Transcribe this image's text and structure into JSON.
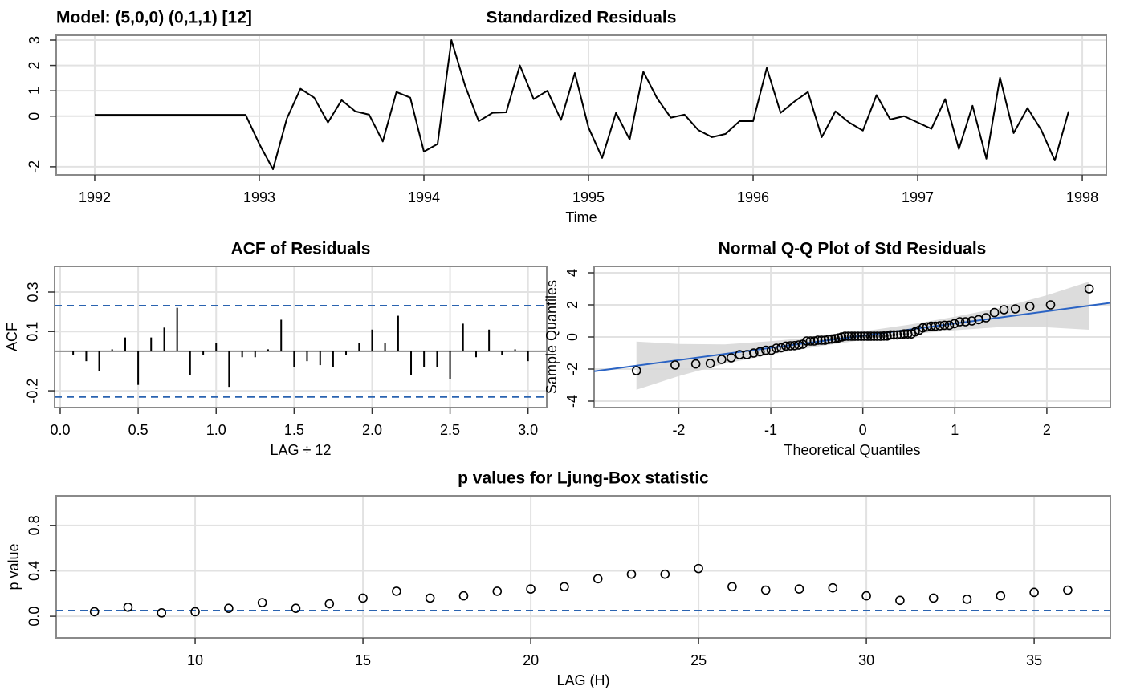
{
  "chart_data": [
    {
      "type": "line",
      "title": "Standardized Residuals",
      "annotation": "Model: (5,0,0) (0,1,1) [12]",
      "xlabel": "Time",
      "x": [
        1992,
        1992.083,
        1992.167,
        1992.25,
        1992.333,
        1992.417,
        1992.5,
        1992.583,
        1992.667,
        1992.75,
        1992.833,
        1992.917,
        1993,
        1993.083,
        1993.167,
        1993.25,
        1993.333,
        1993.417,
        1993.5,
        1993.583,
        1993.667,
        1993.75,
        1993.833,
        1993.917,
        1994,
        1994.083,
        1994.167,
        1994.25,
        1994.333,
        1994.417,
        1994.5,
        1994.583,
        1994.667,
        1994.75,
        1994.833,
        1994.917,
        1995,
        1995.083,
        1995.167,
        1995.25,
        1995.333,
        1995.417,
        1995.5,
        1995.583,
        1995.667,
        1995.75,
        1995.833,
        1995.917,
        1996,
        1996.083,
        1996.167,
        1996.25,
        1996.333,
        1996.417,
        1996.5,
        1996.583,
        1996.667,
        1996.75,
        1996.833,
        1996.917,
        1997,
        1997.083,
        1997.167,
        1997.25,
        1997.333,
        1997.417,
        1997.5,
        1997.583,
        1997.667,
        1997.75,
        1997.833,
        1997.917
      ],
      "values": [
        0.05,
        0.05,
        0.05,
        0.05,
        0.05,
        0.05,
        0.05,
        0.05,
        0.05,
        0.05,
        0.05,
        0.05,
        -1.1,
        -2.1,
        -0.1,
        1.08,
        0.73,
        -0.25,
        0.63,
        0.19,
        0.06,
        -1.0,
        0.95,
        0.73,
        -1.4,
        -1.1,
        3.0,
        1.2,
        -0.2,
        0.13,
        0.15,
        2.0,
        0.67,
        1.0,
        -0.15,
        1.7,
        -0.45,
        -1.65,
        0.13,
        -0.92,
        1.75,
        0.7,
        -0.06,
        0.06,
        -0.55,
        -0.83,
        -0.7,
        -0.2,
        -0.2,
        1.9,
        0.13,
        0.57,
        0.95,
        -0.83,
        0.19,
        -0.25,
        -0.57,
        0.83,
        -0.13,
        0,
        -0.25,
        -0.5,
        0.67,
        -1.3,
        0.41,
        -1.68,
        1.52,
        -0.67,
        0.32,
        -0.54,
        -1.75,
        0.19
      ],
      "color": "#000000",
      "xlim": [
        1991.766,
        1998.146
      ],
      "ylim": [
        -2.32,
        3.19
      ],
      "xticks": [
        1992,
        1993,
        1994,
        1995,
        1996,
        1997,
        1998
      ],
      "yticks": [
        -2,
        0,
        1,
        2,
        3
      ],
      "grid": true
    },
    {
      "type": "bar",
      "title": "ACF of Residuals",
      "xlabel": "LAG ÷ 12",
      "ylabel": "ACF",
      "x": [
        0.083,
        0.167,
        0.25,
        0.333,
        0.417,
        0.5,
        0.583,
        0.667,
        0.75,
        0.833,
        0.917,
        1,
        1.083,
        1.167,
        1.25,
        1.333,
        1.417,
        1.5,
        1.583,
        1.667,
        1.75,
        1.833,
        1.917,
        2,
        2.083,
        2.167,
        2.25,
        2.333,
        2.417,
        2.5,
        2.583,
        2.667,
        2.75,
        2.833,
        2.917,
        3
      ],
      "values": [
        -0.02,
        -0.05,
        -0.1,
        0.01,
        0.07,
        -0.17,
        0.07,
        0.12,
        0.22,
        -0.12,
        -0.02,
        0.04,
        -0.18,
        -0.03,
        -0.03,
        0.01,
        0.16,
        -0.08,
        -0.05,
        -0.07,
        -0.08,
        -0.02,
        0.04,
        0.11,
        0.04,
        0.18,
        -0.12,
        -0.08,
        -0.08,
        -0.14,
        0.14,
        -0.03,
        0.11,
        -0.02,
        0.01,
        -0.05
      ],
      "color": "#000000",
      "hlines": [
        0.231,
        -0.231
      ],
      "hline_color": "#2a63b0",
      "xlim": [
        -0.036,
        3.12
      ],
      "ylim": [
        -0.285,
        0.43
      ],
      "xticks": [
        {
          "value": 0,
          "label": "0.0"
        },
        0.5,
        {
          "value": 1,
          "label": "1.0"
        },
        1.5,
        {
          "value": 2,
          "label": "2.0"
        },
        2.5,
        {
          "value": 3,
          "label": "3.0"
        }
      ],
      "yticks": [
        -0.2,
        0.1,
        0.3
      ],
      "grid": true
    },
    {
      "type": "scatter",
      "title": "Normal Q-Q Plot of Std Residuals",
      "xlabel": "Theoretical Quantiles",
      "ylabel": "Sample Quantiles",
      "x": [
        -2.46,
        -2.04,
        -1.815,
        -1.658,
        -1.534,
        -1.43,
        -1.339,
        -1.259,
        -1.185,
        -1.117,
        -1.054,
        -0.995,
        -0.94,
        -0.887,
        -0.837,
        -0.788,
        -0.742,
        -0.697,
        -0.653,
        -0.61,
        -0.569,
        -0.528,
        -0.489,
        -0.45,
        -0.412,
        -0.374,
        -0.337,
        -0.301,
        -0.264,
        -0.229,
        -0.193,
        -0.157,
        -0.122,
        -0.087,
        -0.052,
        -0.017,
        0.017,
        0.052,
        0.087,
        0.122,
        0.157,
        0.193,
        0.229,
        0.264,
        0.301,
        0.337,
        0.374,
        0.412,
        0.45,
        0.489,
        0.528,
        0.569,
        0.61,
        0.653,
        0.697,
        0.742,
        0.788,
        0.837,
        0.887,
        0.94,
        0.995,
        1.054,
        1.117,
        1.185,
        1.259,
        1.339,
        1.43,
        1.534,
        1.658,
        1.815,
        2.04,
        2.46
      ],
      "values": [
        -2.1,
        -1.75,
        -1.68,
        -1.65,
        -1.4,
        -1.3,
        -1.1,
        -1.1,
        -1.0,
        -0.92,
        -0.83,
        -0.83,
        -0.7,
        -0.67,
        -0.57,
        -0.55,
        -0.54,
        -0.5,
        -0.45,
        -0.25,
        -0.25,
        -0.25,
        -0.2,
        -0.2,
        -0.2,
        -0.15,
        -0.13,
        -0.1,
        -0.06,
        0,
        0.05,
        0.05,
        0.05,
        0.05,
        0.05,
        0.05,
        0.05,
        0.05,
        0.05,
        0.05,
        0.05,
        0.05,
        0.06,
        0.06,
        0.13,
        0.13,
        0.13,
        0.15,
        0.19,
        0.19,
        0.19,
        0.32,
        0.41,
        0.57,
        0.63,
        0.67,
        0.67,
        0.7,
        0.73,
        0.73,
        0.83,
        0.95,
        0.95,
        1.0,
        1.08,
        1.2,
        1.52,
        1.7,
        1.75,
        1.9,
        2.0,
        3.0
      ],
      "color": "#000000",
      "fit": {
        "slope": 0.76,
        "intercept": 0.08,
        "color": "#2a63c4"
      },
      "band": {
        "x": [
          -2.46,
          -2,
          -1.5,
          -1,
          -0.5,
          0,
          0.5,
          1,
          1.5,
          2,
          2.46
        ],
        "lower": [
          -3.29,
          -2.44,
          -1.66,
          -1.1,
          -0.6,
          -0.19,
          0.16,
          0.42,
          0.62,
          0.6,
          0.45
        ],
        "upper": [
          -0.29,
          -0.44,
          -0.46,
          -0.26,
          0,
          0.35,
          0.76,
          1.26,
          1.82,
          2.6,
          3.45
        ],
        "color": "#d6d6d6"
      },
      "xlim": [
        -2.92,
        2.69
      ],
      "ylim": [
        -4.4,
        4.4
      ],
      "xticks": [
        -2,
        -1,
        0,
        1,
        2
      ],
      "yticks": [
        -4,
        -2,
        0,
        2,
        4
      ],
      "grid": true
    },
    {
      "type": "scatter",
      "title": "p values for Ljung-Box statistic",
      "xlabel": "LAG (H)",
      "ylabel": "p value",
      "x": [
        7,
        8,
        9,
        10,
        11,
        12,
        13,
        14,
        15,
        16,
        17,
        18,
        19,
        20,
        21,
        22,
        23,
        24,
        25,
        26,
        27,
        28,
        29,
        30,
        31,
        32,
        33,
        34,
        35,
        36
      ],
      "values": [
        0.04,
        0.08,
        0.03,
        0.04,
        0.07,
        0.12,
        0.07,
        0.11,
        0.16,
        0.22,
        0.16,
        0.18,
        0.22,
        0.24,
        0.26,
        0.33,
        0.37,
        0.37,
        0.42,
        0.26,
        0.23,
        0.24,
        0.25,
        0.18,
        0.14,
        0.16,
        0.15,
        0.18,
        0.21,
        0.23
      ],
      "color": "#000000",
      "hlines": [
        0.05
      ],
      "hline_color": "#2a63b0",
      "xlim": [
        5.86,
        37.27
      ],
      "ylim": [
        -0.19,
        1.06
      ],
      "xticks": [
        10,
        15,
        20,
        25,
        30,
        35
      ],
      "yticks": [
        {
          "value": 0,
          "label": "0.0"
        },
        {
          "value": 0.4,
          "label": "0.4"
        },
        {
          "value": 0.8,
          "label": "0.8"
        }
      ],
      "grid": true
    }
  ]
}
